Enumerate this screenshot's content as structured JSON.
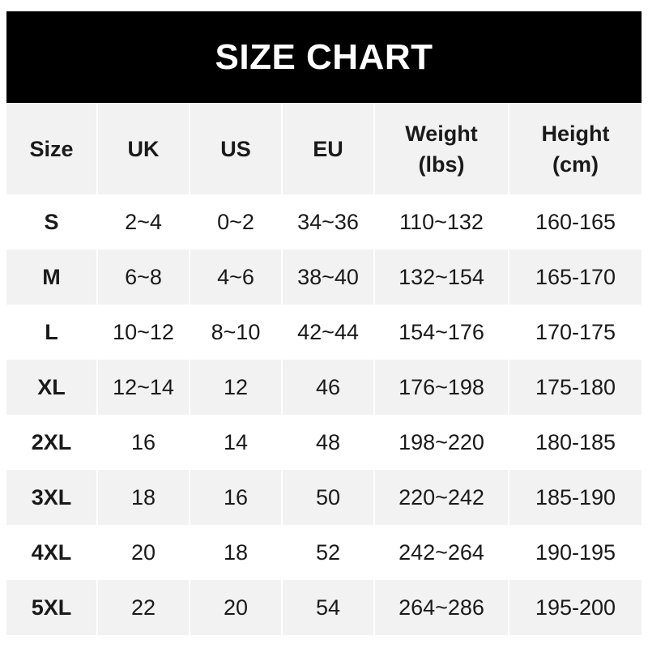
{
  "title": "SIZE CHART",
  "headers": [
    [
      "Size"
    ],
    [
      "UK"
    ],
    [
      "US"
    ],
    [
      "EU"
    ],
    [
      "Weight",
      "(lbs)"
    ],
    [
      "Height",
      "(cm)"
    ]
  ],
  "rows": [
    [
      "S",
      "2~4",
      "0~2",
      "34~36",
      "110~132",
      "160-165"
    ],
    [
      "M",
      "6~8",
      "4~6",
      "38~40",
      "132~154",
      "165-170"
    ],
    [
      "L",
      "10~12",
      "8~10",
      "42~44",
      "154~176",
      "170-175"
    ],
    [
      "XL",
      "12~14",
      "12",
      "46",
      "176~198",
      "175-180"
    ],
    [
      "2XL",
      "16",
      "14",
      "48",
      "198~220",
      "180-185"
    ],
    [
      "3XL",
      "18",
      "16",
      "50",
      "220~242",
      "185-190"
    ],
    [
      "4XL",
      "20",
      "18",
      "52",
      "242~264",
      "190-195"
    ],
    [
      "5XL",
      "22",
      "20",
      "54",
      "264~286",
      "195-200"
    ]
  ],
  "colors": {
    "title_bg": "#000000",
    "header_bg": "#f2f2f2",
    "alt_row_bg": "#f2f2f2"
  }
}
